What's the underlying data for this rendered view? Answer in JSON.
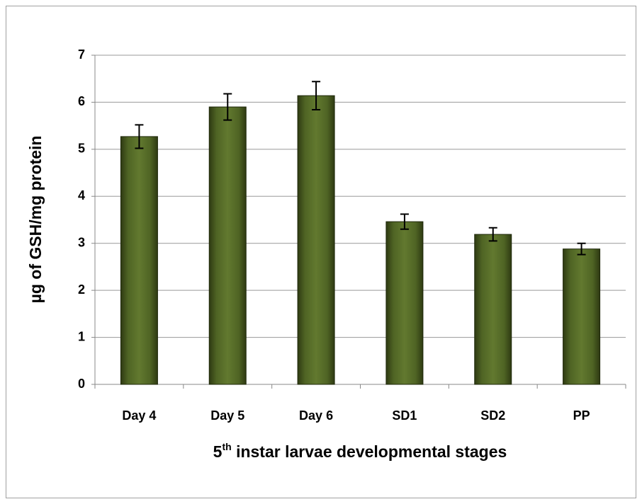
{
  "chart_data": {
    "type": "bar",
    "ylabel": "µg of GSH/mg protein",
    "xlabel": [
      "5",
      "th",
      " instar larvae developmental stages"
    ],
    "categories": [
      "Day 4",
      "Day 5",
      "Day 6",
      "SD1",
      "SD2",
      "PP"
    ],
    "values": [
      5.27,
      5.9,
      6.14,
      3.46,
      3.19,
      2.88
    ],
    "errors": [
      0.25,
      0.28,
      0.3,
      0.16,
      0.14,
      0.12
    ],
    "color": "#4f6424",
    "ylim": [
      0,
      7
    ],
    "yticks": [
      0,
      1,
      2,
      3,
      4,
      5,
      6,
      7
    ],
    "grid": true
  }
}
